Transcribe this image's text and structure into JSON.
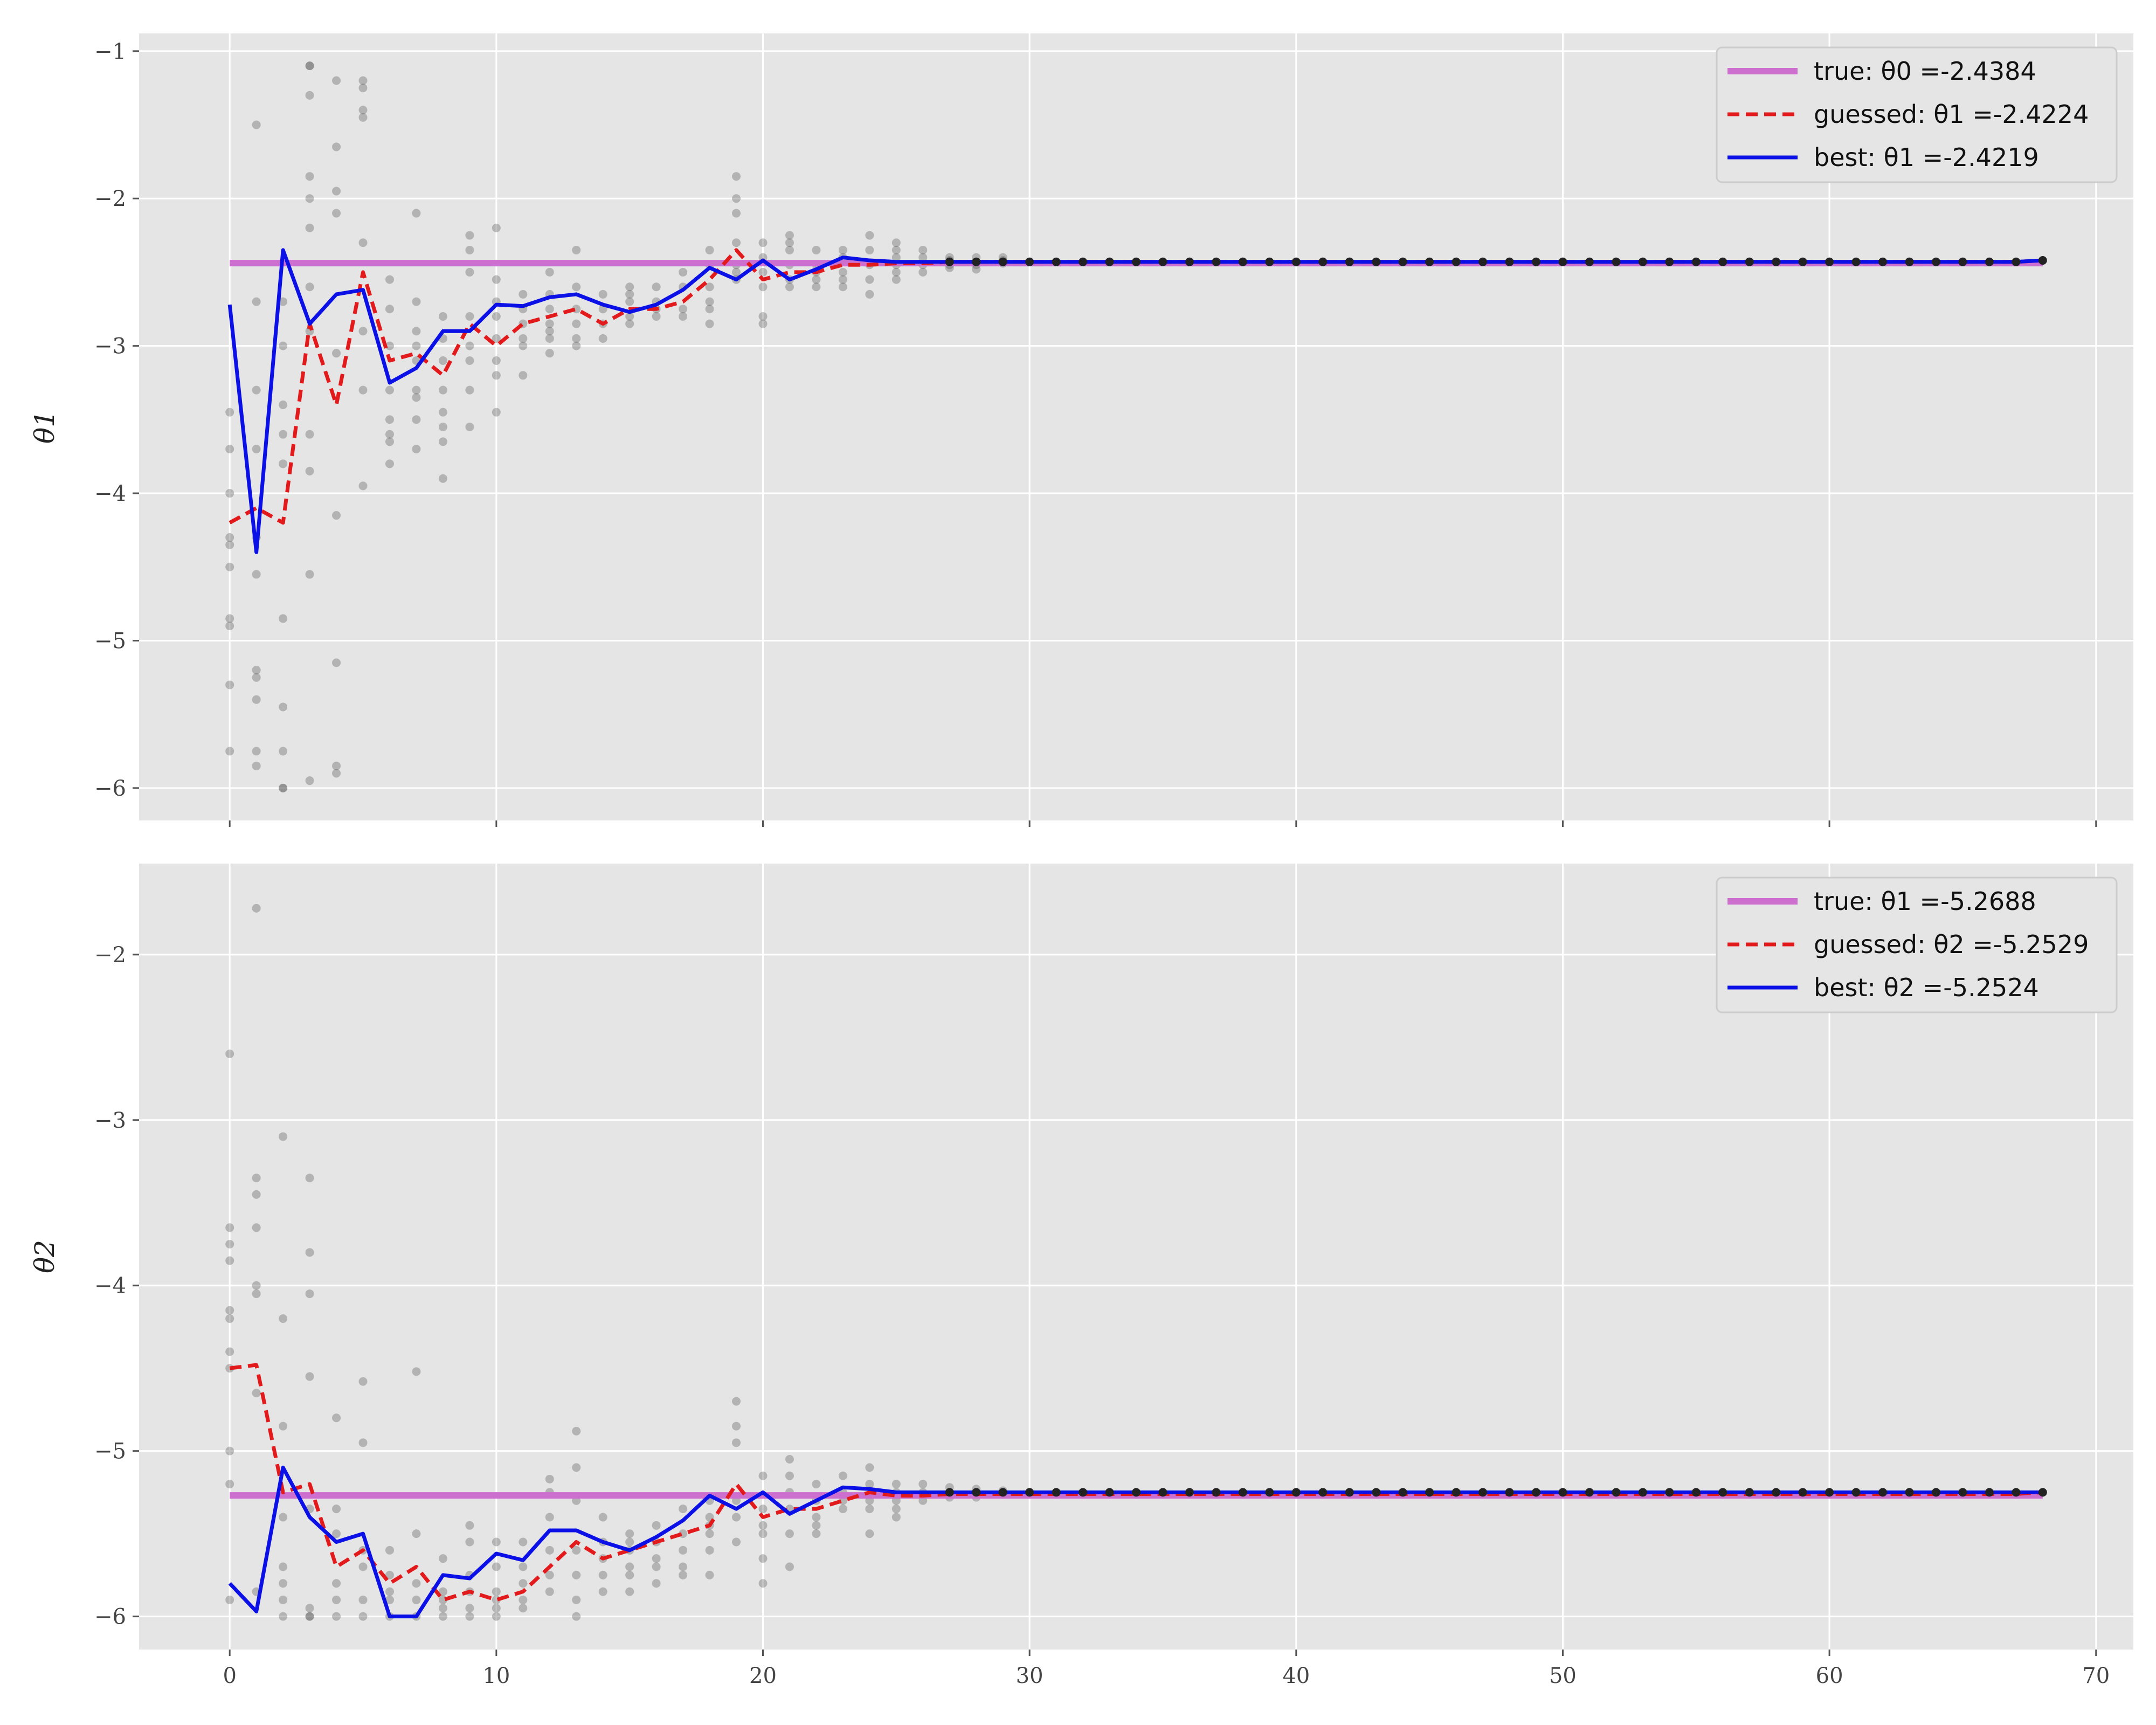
{
  "chart_data": [
    {
      "type": "line",
      "ylabel": "θ1",
      "xlim": [
        -3.4,
        71.4
      ],
      "ylim": [
        -6.22,
        -0.88
      ],
      "xticks": [
        0,
        10,
        20,
        30,
        40,
        50,
        60,
        70
      ],
      "xtick_labels": [
        "",
        "",
        "",
        "",
        "",
        "",
        "",
        ""
      ],
      "yticks": [
        -6,
        -5,
        -4,
        -3,
        -2,
        -1
      ],
      "ytick_labels": [
        "−6",
        "−5",
        "−4",
        "−3",
        "−2",
        "−1"
      ],
      "legend": {
        "position": "top-right",
        "entries": [
          "true: θ0 =-2.4384",
          "guessed: θ1 =-2.4224",
          "best: θ1 =-2.4219"
        ]
      },
      "grid": true,
      "colors": {
        "true": "#cc6fcf",
        "guessed": "#e31a1c",
        "best": "#0b10e6",
        "scatter": "#555555",
        "background": "#e5e5e5"
      },
      "true_value": -2.4384,
      "guessed": [
        -4.2,
        -4.1,
        -4.2,
        -2.85,
        -3.4,
        -2.5,
        -3.1,
        -3.05,
        -3.2,
        -2.85,
        -3.0,
        -2.85,
        -2.8,
        -2.75,
        -2.85,
        -2.75,
        -2.75,
        -2.7,
        -2.55,
        -2.35,
        -2.55,
        -2.5,
        -2.5,
        -2.45,
        -2.45,
        -2.44,
        -2.44,
        -2.43,
        -2.43,
        -2.43,
        -2.43,
        -2.43,
        -2.43,
        -2.43,
        -2.43,
        -2.43,
        -2.43,
        -2.43,
        -2.43,
        -2.43,
        -2.43,
        -2.43,
        -2.43,
        -2.43,
        -2.43,
        -2.43,
        -2.43,
        -2.43,
        -2.43,
        -2.43,
        -2.43,
        -2.43,
        -2.43,
        -2.43,
        -2.43,
        -2.43,
        -2.43,
        -2.43,
        -2.43,
        -2.43,
        -2.43,
        -2.43,
        -2.43,
        -2.43,
        -2.43,
        -2.43,
        -2.43,
        -2.43,
        -2.42
      ],
      "best": [
        -2.72,
        -4.4,
        -2.35,
        -2.85,
        -2.65,
        -2.62,
        -3.25,
        -3.15,
        -2.9,
        -2.9,
        -2.72,
        -2.73,
        -2.67,
        -2.65,
        -2.72,
        -2.77,
        -2.72,
        -2.62,
        -2.47,
        -2.55,
        -2.42,
        -2.55,
        -2.48,
        -2.4,
        -2.42,
        -2.43,
        -2.43,
        -2.43,
        -2.43,
        -2.43,
        -2.43,
        -2.43,
        -2.43,
        -2.43,
        -2.43,
        -2.43,
        -2.43,
        -2.43,
        -2.43,
        -2.43,
        -2.43,
        -2.43,
        -2.43,
        -2.43,
        -2.43,
        -2.43,
        -2.43,
        -2.43,
        -2.43,
        -2.43,
        -2.43,
        -2.43,
        -2.43,
        -2.43,
        -2.43,
        -2.43,
        -2.43,
        -2.43,
        -2.43,
        -2.43,
        -2.43,
        -2.43,
        -2.43,
        -2.43,
        -2.43,
        -2.43,
        -2.43,
        -2.43,
        -2.42
      ],
      "samples": [
        [
          0,
          [
            -3.45,
            -3.7,
            -4.0,
            -4.3,
            -4.35,
            -4.5,
            -4.85,
            -4.9,
            -5.3,
            -5.75
          ]
        ],
        [
          1,
          [
            -1.5,
            -2.7,
            -3.3,
            -3.7,
            -4.3,
            -4.55,
            -5.2,
            -5.25,
            -5.4,
            -5.75,
            -5.85
          ]
        ],
        [
          2,
          [
            -2.7,
            -3.0,
            -3.4,
            -3.6,
            -3.8,
            -4.85,
            -5.45,
            -5.75,
            -6.0,
            -6.0
          ]
        ],
        [
          3,
          [
            -1.1,
            -1.1,
            -1.3,
            -1.85,
            -2.0,
            -2.2,
            -2.6,
            -2.9,
            -3.6,
            -3.85,
            -4.55,
            -5.95
          ]
        ],
        [
          4,
          [
            -1.2,
            -1.65,
            -1.95,
            -2.1,
            -3.05,
            -4.15,
            -5.15,
            -5.85,
            -5.9
          ]
        ],
        [
          5,
          [
            -1.2,
            -1.25,
            -1.4,
            -1.45,
            -2.3,
            -2.9,
            -3.3,
            -3.95
          ]
        ],
        [
          6,
          [
            -2.55,
            -2.75,
            -3.0,
            -3.3,
            -3.5,
            -3.6,
            -3.65,
            -3.8
          ]
        ],
        [
          7,
          [
            -2.1,
            -2.7,
            -2.9,
            -3.0,
            -3.1,
            -3.3,
            -3.35,
            -3.5,
            -3.7
          ]
        ],
        [
          8,
          [
            -2.8,
            -2.95,
            -3.1,
            -3.3,
            -3.45,
            -3.55,
            -3.65,
            -3.9
          ]
        ],
        [
          9,
          [
            -2.25,
            -2.35,
            -2.5,
            -2.8,
            -3.0,
            -3.1,
            -3.3,
            -3.55
          ]
        ],
        [
          10,
          [
            -2.2,
            -2.55,
            -2.7,
            -2.8,
            -2.95,
            -3.1,
            -3.2,
            -3.45
          ]
        ],
        [
          11,
          [
            -2.65,
            -2.75,
            -2.85,
            -2.95,
            -3.0,
            -3.2
          ]
        ],
        [
          12,
          [
            -2.5,
            -2.65,
            -2.75,
            -2.85,
            -2.9,
            -2.95,
            -3.05
          ]
        ],
        [
          13,
          [
            -2.35,
            -2.6,
            -2.75,
            -2.85,
            -2.95,
            -3.0
          ]
        ],
        [
          14,
          [
            -2.65,
            -2.75,
            -2.85,
            -2.95
          ]
        ],
        [
          15,
          [
            -2.6,
            -2.65,
            -2.7,
            -2.8,
            -2.85
          ]
        ],
        [
          16,
          [
            -2.6,
            -2.7,
            -2.75,
            -2.8
          ]
        ],
        [
          17,
          [
            -2.5,
            -2.6,
            -2.75,
            -2.8
          ]
        ],
        [
          18,
          [
            -2.35,
            -2.45,
            -2.6,
            -2.7,
            -2.75,
            -2.85
          ]
        ],
        [
          19,
          [
            -1.85,
            -2.0,
            -2.1,
            -2.3,
            -2.45,
            -2.5,
            -2.55
          ]
        ],
        [
          20,
          [
            -2.3,
            -2.4,
            -2.5,
            -2.6,
            -2.8,
            -2.85
          ]
        ],
        [
          21,
          [
            -2.25,
            -2.3,
            -2.35,
            -2.45,
            -2.55,
            -2.6
          ]
        ],
        [
          22,
          [
            -2.35,
            -2.45,
            -2.5,
            -2.55,
            -2.6
          ]
        ],
        [
          23,
          [
            -2.35,
            -2.4,
            -2.5,
            -2.55,
            -2.6
          ]
        ],
        [
          24,
          [
            -2.25,
            -2.35,
            -2.45,
            -2.55,
            -2.65
          ]
        ],
        [
          25,
          [
            -2.3,
            -2.35,
            -2.4,
            -2.45,
            -2.5,
            -2.55
          ]
        ],
        [
          26,
          [
            -2.35,
            -2.4,
            -2.45,
            -2.5
          ]
        ],
        [
          27,
          [
            -2.4,
            -2.42,
            -2.45,
            -2.47
          ]
        ],
        [
          28,
          [
            -2.4,
            -2.45,
            -2.48
          ]
        ],
        [
          29,
          [
            -2.4,
            -2.42,
            -2.44
          ]
        ]
      ]
    },
    {
      "type": "line",
      "ylabel": "θ2",
      "xlim": [
        -3.4,
        71.4
      ],
      "ylim": [
        -6.2,
        -1.45
      ],
      "xticks": [
        0,
        10,
        20,
        30,
        40,
        50,
        60,
        70
      ],
      "xtick_labels": [
        "0",
        "10",
        "20",
        "30",
        "40",
        "50",
        "60",
        "70"
      ],
      "yticks": [
        -6,
        -5,
        -4,
        -3,
        -2
      ],
      "ytick_labels": [
        "−6",
        "−5",
        "−4",
        "−3",
        "−2"
      ],
      "legend": {
        "position": "top-right",
        "entries": [
          "true: θ1 =-5.2688",
          "guessed: θ2 =-5.2529",
          "best: θ2 =-5.2524"
        ]
      },
      "grid": true,
      "colors": {
        "true": "#cc6fcf",
        "guessed": "#e31a1c",
        "best": "#0b10e6",
        "scatter": "#555555",
        "background": "#e5e5e5"
      },
      "true_value": -5.2688,
      "guessed": [
        -4.5,
        -4.48,
        -5.25,
        -5.2,
        -5.7,
        -5.6,
        -5.8,
        -5.7,
        -5.9,
        -5.85,
        -5.9,
        -5.85,
        -5.7,
        -5.55,
        -5.65,
        -5.6,
        -5.55,
        -5.5,
        -5.45,
        -5.2,
        -5.4,
        -5.35,
        -5.35,
        -5.3,
        -5.25,
        -5.27,
        -5.27,
        -5.26,
        -5.26,
        -5.26,
        -5.26,
        -5.26,
        -5.26,
        -5.26,
        -5.26,
        -5.26,
        -5.26,
        -5.26,
        -5.26,
        -5.26,
        -5.26,
        -5.26,
        -5.26,
        -5.26,
        -5.26,
        -5.26,
        -5.26,
        -5.26,
        -5.26,
        -5.26,
        -5.26,
        -5.26,
        -5.26,
        -5.26,
        -5.26,
        -5.26,
        -5.26,
        -5.26,
        -5.26,
        -5.26,
        -5.26,
        -5.26,
        -5.26,
        -5.26,
        -5.26,
        -5.26,
        -5.26,
        -5.26,
        -5.25
      ],
      "best": [
        -5.8,
        -5.97,
        -5.1,
        -5.4,
        -5.55,
        -5.5,
        -6.0,
        -6.0,
        -5.75,
        -5.77,
        -5.62,
        -5.66,
        -5.48,
        -5.48,
        -5.55,
        -5.6,
        -5.52,
        -5.42,
        -5.27,
        -5.35,
        -5.25,
        -5.38,
        -5.3,
        -5.22,
        -5.23,
        -5.25,
        -5.25,
        -5.25,
        -5.25,
        -5.25,
        -5.25,
        -5.25,
        -5.25,
        -5.25,
        -5.25,
        -5.25,
        -5.25,
        -5.25,
        -5.25,
        -5.25,
        -5.25,
        -5.25,
        -5.25,
        -5.25,
        -5.25,
        -5.25,
        -5.25,
        -5.25,
        -5.25,
        -5.25,
        -5.25,
        -5.25,
        -5.25,
        -5.25,
        -5.25,
        -5.25,
        -5.25,
        -5.25,
        -5.25,
        -5.25,
        -5.25,
        -5.25,
        -5.25,
        -5.25,
        -5.25,
        -5.25,
        -5.25,
        -5.25,
        -5.25
      ],
      "samples": [
        [
          0,
          [
            -2.6,
            -3.65,
            -3.75,
            -3.85,
            -4.15,
            -4.2,
            -4.4,
            -4.5,
            -5.0,
            -5.2,
            -5.9
          ]
        ],
        [
          1,
          [
            -1.72,
            -3.35,
            -3.45,
            -3.65,
            -4.0,
            -4.05,
            -4.65,
            -5.85
          ]
        ],
        [
          2,
          [
            -3.1,
            -4.2,
            -4.85,
            -5.4,
            -5.7,
            -5.8,
            -5.9,
            -6.0
          ]
        ],
        [
          3,
          [
            -3.35,
            -3.8,
            -4.05,
            -4.55,
            -5.35,
            -5.95,
            -6.0,
            -6.0
          ]
        ],
        [
          4,
          [
            -4.8,
            -5.35,
            -5.5,
            -5.8,
            -5.9,
            -6.0
          ]
        ],
        [
          5,
          [
            -4.58,
            -4.95,
            -5.6,
            -5.7,
            -5.9,
            -6.0
          ]
        ],
        [
          6,
          [
            -5.6,
            -5.75,
            -5.85,
            -5.9,
            -6.0
          ]
        ],
        [
          7,
          [
            -4.52,
            -5.5,
            -5.8,
            -5.9,
            -6.0
          ]
        ],
        [
          8,
          [
            -5.65,
            -5.85,
            -5.9,
            -5.95,
            -6.0
          ]
        ],
        [
          9,
          [
            -5.45,
            -5.55,
            -5.75,
            -5.85,
            -5.95,
            -6.0
          ]
        ],
        [
          10,
          [
            -5.55,
            -5.7,
            -5.85,
            -5.9,
            -5.95,
            -6.0
          ]
        ],
        [
          11,
          [
            -5.55,
            -5.7,
            -5.8,
            -5.9,
            -5.95
          ]
        ],
        [
          12,
          [
            -5.17,
            -5.25,
            -5.4,
            -5.6,
            -5.75,
            -5.85
          ]
        ],
        [
          13,
          [
            -4.88,
            -5.1,
            -5.3,
            -5.6,
            -5.75,
            -5.9,
            -6.0
          ]
        ],
        [
          14,
          [
            -5.4,
            -5.55,
            -5.65,
            -5.75,
            -5.85
          ]
        ],
        [
          15,
          [
            -5.5,
            -5.55,
            -5.6,
            -5.7,
            -5.75,
            -5.85
          ]
        ],
        [
          16,
          [
            -5.45,
            -5.55,
            -5.65,
            -5.7,
            -5.8
          ]
        ],
        [
          17,
          [
            -5.35,
            -5.5,
            -5.6,
            -5.7,
            -5.75
          ]
        ],
        [
          18,
          [
            -5.3,
            -5.4,
            -5.45,
            -5.5,
            -5.6,
            -5.75
          ]
        ],
        [
          19,
          [
            -4.7,
            -4.85,
            -4.95,
            -5.3,
            -5.4,
            -5.55
          ]
        ],
        [
          20,
          [
            -5.15,
            -5.35,
            -5.45,
            -5.5,
            -5.65,
            -5.8
          ]
        ],
        [
          21,
          [
            -5.05,
            -5.15,
            -5.25,
            -5.35,
            -5.5,
            -5.7
          ]
        ],
        [
          22,
          [
            -5.2,
            -5.3,
            -5.4,
            -5.45,
            -5.5
          ]
        ],
        [
          23,
          [
            -5.15,
            -5.25,
            -5.3,
            -5.35
          ]
        ],
        [
          24,
          [
            -5.1,
            -5.2,
            -5.3,
            -5.35,
            -5.5
          ]
        ],
        [
          25,
          [
            -5.2,
            -5.25,
            -5.3,
            -5.35,
            -5.4
          ]
        ],
        [
          26,
          [
            -5.2,
            -5.25,
            -5.3
          ]
        ],
        [
          27,
          [
            -5.22,
            -5.25,
            -5.28
          ]
        ],
        [
          28,
          [
            -5.23,
            -5.26,
            -5.28
          ]
        ],
        [
          29,
          [
            -5.24,
            -5.26
          ]
        ]
      ]
    }
  ]
}
